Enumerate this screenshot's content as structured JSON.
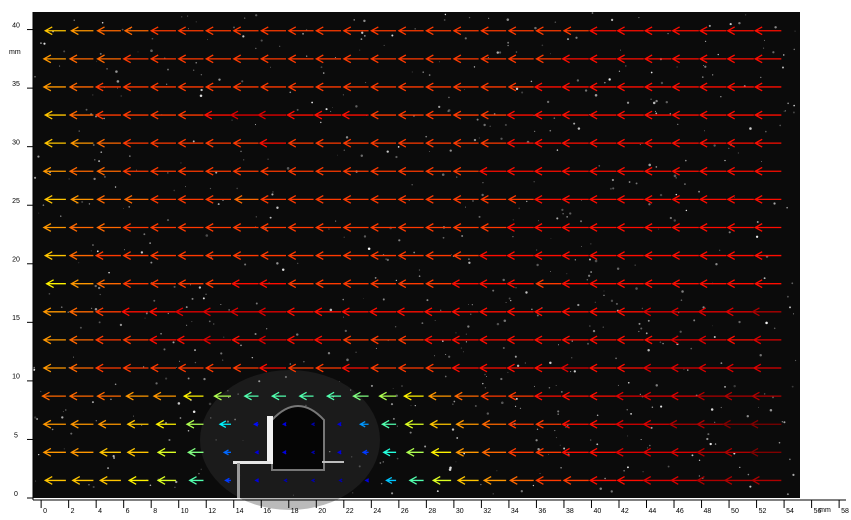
{
  "chart_data": {
    "type": "quiver",
    "y_label": "mm",
    "x_label": "mm",
    "xlim": [
      -0.3,
      58.5
    ],
    "ylim": [
      0,
      41.5
    ],
    "xticks": [
      0,
      2,
      4,
      6,
      8,
      10,
      12,
      14,
      16,
      18,
      20,
      22,
      24,
      26,
      28,
      30,
      32,
      34,
      36,
      38,
      40,
      42,
      44,
      46,
      48,
      50,
      52,
      54,
      56,
      58
    ],
    "yticks": [
      0,
      5,
      10,
      15,
      20,
      25,
      30,
      35,
      40
    ],
    "colormap": "jet",
    "clim": [
      0,
      2.2
    ],
    "x": [
      1.8,
      3.8,
      5.8,
      7.8,
      9.8,
      11.8,
      13.8,
      15.8,
      17.8,
      19.8,
      21.8,
      23.8,
      25.8,
      27.8,
      29.8,
      31.8,
      33.8,
      35.8,
      37.8,
      39.8,
      41.8,
      43.8,
      45.8,
      47.8,
      49.8,
      51.8,
      53.8
    ],
    "rows": [
      {
        "y": 1.5,
        "u": [
          -1.5,
          -1.5,
          -1.5,
          -1.4,
          -1.3,
          -1.0,
          -0.4,
          -0.2,
          -0.1,
          -0.1,
          -0.1,
          -0.2,
          -0.7,
          -1.0,
          -1.3,
          -1.5,
          -1.6,
          -1.7,
          -1.8,
          -1.8,
          -1.9,
          -1.9,
          -2.0,
          -2.0,
          -2.1,
          -2.1,
          -2.1
        ]
      },
      {
        "y": 3.9,
        "u": [
          -1.6,
          -1.6,
          -1.5,
          -1.5,
          -1.3,
          -1.1,
          -0.5,
          -0.2,
          -0.2,
          -0.1,
          -0.2,
          -0.4,
          -0.9,
          -1.2,
          -1.4,
          -1.6,
          -1.7,
          -1.8,
          -1.8,
          -1.9,
          -1.9,
          -2.0,
          -2.0,
          -2.0,
          -2.1,
          -2.1,
          -2.2
        ]
      },
      {
        "y": 6.3,
        "u": [
          -1.6,
          -1.6,
          -1.6,
          -1.5,
          -1.4,
          -1.2,
          -0.8,
          -0.3,
          -0.2,
          -0.1,
          -0.2,
          -0.6,
          -1.0,
          -1.3,
          -1.5,
          -1.6,
          -1.7,
          -1.8,
          -1.8,
          -1.9,
          -1.9,
          -2.0,
          -2.0,
          -2.1,
          -2.1,
          -2.2,
          -2.2
        ]
      },
      {
        "y": 8.7,
        "u": [
          -1.7,
          -1.7,
          -1.7,
          -1.6,
          -1.6,
          -1.4,
          -1.2,
          -1.0,
          -1.0,
          -1.0,
          -1.0,
          -1.1,
          -1.2,
          -1.4,
          -1.6,
          -1.7,
          -1.8,
          -1.8,
          -1.9,
          -1.9,
          -1.9,
          -2.0,
          -2.0,
          -2.0,
          -2.1,
          -2.1,
          -2.1
        ]
      },
      {
        "y": 11.1,
        "u": [
          -1.6,
          -1.7,
          -1.8,
          -1.8,
          -1.8,
          -1.8,
          -1.8,
          -1.8,
          -1.9,
          -1.8,
          -1.8,
          -1.9,
          -1.8,
          -1.8,
          -1.8,
          -1.9,
          -1.9,
          -1.9,
          -1.9,
          -2.0,
          -1.9,
          -1.9,
          -2.0,
          -2.0,
          -2.0,
          -2.0,
          -2.0
        ]
      },
      {
        "y": 13.5,
        "u": [
          -1.6,
          -1.7,
          -1.8,
          -1.8,
          -1.9,
          -1.9,
          -2.0,
          -1.9,
          -2.0,
          -1.9,
          -1.9,
          -1.8,
          -1.8,
          -1.8,
          -1.9,
          -1.9,
          -1.9,
          -1.9,
          -1.9,
          -1.9,
          -1.9,
          -1.9,
          -1.9,
          -2.0,
          -2.0,
          -1.9,
          -2.0
        ]
      },
      {
        "y": 15.9,
        "u": [
          -1.6,
          -1.7,
          -1.8,
          -1.9,
          -1.9,
          -2.0,
          -2.0,
          -2.0,
          -2.0,
          -1.9,
          -1.9,
          -1.9,
          -1.9,
          -1.9,
          -1.9,
          -1.9,
          -1.9,
          -1.9,
          -1.9,
          -1.9,
          -1.9,
          -1.9,
          -2.0,
          -2.0,
          -2.0,
          -2.0,
          -2.1
        ]
      },
      {
        "y": 18.3,
        "u": [
          -1.4,
          -1.6,
          -1.7,
          -1.8,
          -1.8,
          -1.8,
          -1.8,
          -1.9,
          -1.9,
          -1.8,
          -1.8,
          -1.8,
          -1.8,
          -1.8,
          -1.8,
          -1.9,
          -1.9,
          -1.9,
          -1.8,
          -1.9,
          -1.9,
          -1.9,
          -1.9,
          -1.9,
          -1.9,
          -1.9,
          -1.9
        ]
      },
      {
        "y": 20.7,
        "u": [
          -1.5,
          -1.7,
          -1.8,
          -1.8,
          -1.8,
          -1.8,
          -1.8,
          -1.8,
          -1.8,
          -1.8,
          -1.8,
          -1.8,
          -1.8,
          -1.8,
          -1.8,
          -1.8,
          -1.9,
          -1.9,
          -1.9,
          -1.9,
          -1.9,
          -1.9,
          -1.9,
          -1.9,
          -1.9,
          -1.9,
          -1.9
        ]
      },
      {
        "y": 23.1,
        "u": [
          -1.6,
          -1.7,
          -1.7,
          -1.8,
          -1.8,
          -1.8,
          -1.8,
          -1.8,
          -1.8,
          -1.8,
          -1.8,
          -1.8,
          -1.8,
          -1.8,
          -1.8,
          -1.8,
          -1.8,
          -1.9,
          -1.9,
          -1.9,
          -1.9,
          -1.9,
          -1.9,
          -1.9,
          -1.9,
          -1.9,
          -1.9
        ]
      },
      {
        "y": 25.5,
        "u": [
          -1.5,
          -1.6,
          -1.7,
          -1.7,
          -1.8,
          -1.8,
          -1.8,
          -1.7,
          -1.8,
          -1.8,
          -1.8,
          -1.8,
          -1.8,
          -1.8,
          -1.8,
          -1.8,
          -1.8,
          -1.8,
          -1.9,
          -1.9,
          -1.9,
          -1.9,
          -1.9,
          -1.9,
          -1.9,
          -1.9,
          -1.9
        ]
      },
      {
        "y": 27.9,
        "u": [
          -1.6,
          -1.7,
          -1.7,
          -1.8,
          -1.8,
          -1.8,
          -1.8,
          -1.8,
          -1.8,
          -1.8,
          -1.8,
          -1.8,
          -1.8,
          -1.8,
          -1.8,
          -1.8,
          -1.9,
          -1.9,
          -1.9,
          -1.9,
          -1.9,
          -1.9,
          -1.9,
          -1.9,
          -1.9,
          -1.9,
          -1.9
        ]
      },
      {
        "y": 30.3,
        "u": [
          -1.5,
          -1.6,
          -1.7,
          -1.8,
          -1.8,
          -1.8,
          -1.8,
          -1.8,
          -1.9,
          -1.8,
          -1.8,
          -1.8,
          -1.8,
          -1.8,
          -1.8,
          -1.8,
          -1.8,
          -1.9,
          -1.9,
          -1.9,
          -1.9,
          -1.9,
          -1.9,
          -1.9,
          -1.9,
          -1.9,
          -1.9
        ]
      },
      {
        "y": 32.7,
        "u": [
          -1.5,
          -1.7,
          -1.8,
          -1.8,
          -1.8,
          -1.8,
          -1.9,
          -2.0,
          -2.0,
          -1.9,
          -1.9,
          -1.9,
          -1.8,
          -1.8,
          -1.8,
          -1.8,
          -1.8,
          -1.9,
          -1.9,
          -1.9,
          -1.9,
          -1.9,
          -1.9,
          -1.9,
          -1.9,
          -1.9,
          -1.9
        ]
      },
      {
        "y": 35.1,
        "u": [
          -1.6,
          -1.7,
          -1.8,
          -1.8,
          -1.8,
          -1.8,
          -1.8,
          -1.8,
          -1.8,
          -1.8,
          -1.8,
          -1.8,
          -1.8,
          -1.8,
          -1.8,
          -1.8,
          -1.8,
          -1.8,
          -1.9,
          -1.9,
          -1.9,
          -1.9,
          -1.9,
          -1.9,
          -1.9,
          -1.9,
          -1.9
        ]
      },
      {
        "y": 37.5,
        "u": [
          -1.6,
          -1.7,
          -1.7,
          -1.8,
          -1.8,
          -1.8,
          -1.8,
          -1.8,
          -1.8,
          -1.8,
          -1.8,
          -1.8,
          -1.8,
          -1.8,
          -1.8,
          -1.8,
          -1.8,
          -1.8,
          -1.8,
          -1.9,
          -1.9,
          -1.9,
          -1.9,
          -1.9,
          -1.9,
          -1.9,
          -1.9
        ]
      },
      {
        "y": 39.9,
        "u": [
          -1.5,
          -1.6,
          -1.7,
          -1.7,
          -1.8,
          -1.8,
          -1.8,
          -1.8,
          -1.8,
          -1.8,
          -1.8,
          -1.8,
          -1.8,
          -1.8,
          -1.8,
          -1.8,
          -1.8,
          -1.8,
          -1.8,
          -1.8,
          -1.9,
          -1.9,
          -1.9,
          -1.9,
          -1.9,
          -1.9,
          -1.9
        ]
      }
    ]
  }
}
